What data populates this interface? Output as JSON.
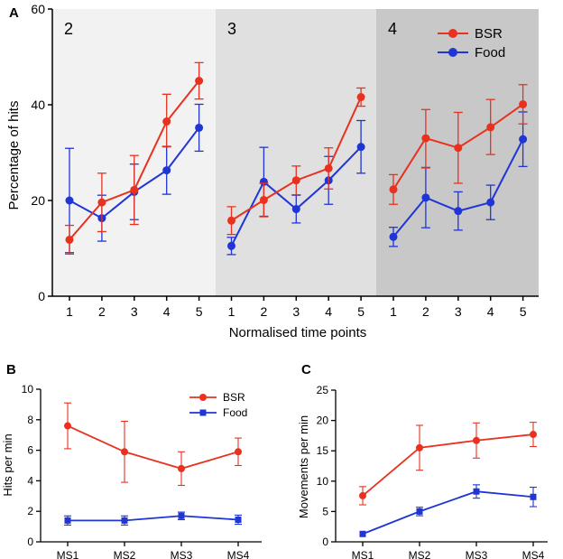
{
  "figure": {
    "panels": {
      "a": "A",
      "b": "B",
      "c": "C"
    }
  },
  "colors": {
    "bsr": "#e8321f",
    "food": "#1f35d6",
    "region1": "#f2f2f2",
    "region2": "#e0e0e0",
    "region3": "#c8c8c8"
  },
  "chart_data": [
    {
      "type": "line",
      "panel": "A",
      "title": "",
      "xlabel": "Normalised time points",
      "ylabel": "Percentage of hits",
      "ylim": [
        0,
        60
      ],
      "yticks": [
        0,
        20,
        40,
        60
      ],
      "categories": [
        "1",
        "2",
        "3",
        "4",
        "5",
        "1",
        "2",
        "3",
        "4",
        "5",
        "1",
        "2",
        "3",
        "4",
        "5"
      ],
      "regions": [
        {
          "label": "2",
          "from": 0,
          "to": 4
        },
        {
          "label": "3",
          "from": 5,
          "to": 9
        },
        {
          "label": "4",
          "from": 10,
          "to": 14
        }
      ],
      "legend": {
        "position": "top-right"
      },
      "series": [
        {
          "name": "BSR",
          "marker": "circle",
          "values": [
            11.8,
            19.6,
            22.2,
            36.5,
            45.0,
            15.8,
            20.1,
            24.2,
            26.7,
            41.6,
            22.3,
            33.0,
            31.0,
            35.3,
            40.1
          ],
          "err_low": [
            3.0,
            6.1,
            7.2,
            5.3,
            3.8,
            2.9,
            3.5,
            3.0,
            4.3,
            1.9,
            3.1,
            6.2,
            7.4,
            5.7,
            4.1
          ],
          "err_high": [
            3.0,
            6.1,
            7.2,
            5.7,
            3.8,
            2.9,
            3.5,
            3.0,
            4.3,
            1.9,
            3.1,
            6.0,
            7.4,
            5.8,
            4.1
          ],
          "segments": [
            [
              0,
              4
            ],
            [
              5,
              9
            ],
            [
              10,
              14
            ]
          ]
        },
        {
          "name": "Food",
          "marker": "circle",
          "values": [
            20.0,
            16.3,
            21.8,
            26.3,
            35.2,
            10.5,
            23.9,
            18.2,
            24.2,
            31.2,
            12.4,
            20.6,
            17.8,
            19.6,
            32.8
          ],
          "err_low": [
            10.9,
            4.8,
            5.8,
            5.0,
            4.9,
            1.8,
            7.2,
            2.9,
            5.0,
            5.5,
            2.0,
            6.3,
            4.0,
            3.6,
            5.7
          ],
          "err_high": [
            10.9,
            4.8,
            5.8,
            5.0,
            4.9,
            1.8,
            7.2,
            2.9,
            5.0,
            5.5,
            2.0,
            6.3,
            4.0,
            3.6,
            5.7
          ],
          "segments": [
            [
              0,
              4
            ],
            [
              5,
              9
            ],
            [
              10,
              14
            ]
          ]
        }
      ]
    },
    {
      "type": "line",
      "panel": "B",
      "title": "",
      "xlabel": "",
      "ylabel": "Hits per min",
      "ylim": [
        0,
        10
      ],
      "yticks": [
        0,
        2,
        4,
        6,
        8,
        10
      ],
      "categories": [
        "MS1",
        "MS2",
        "MS3",
        "MS4"
      ],
      "legend": {
        "position": "top-right"
      },
      "series": [
        {
          "name": "BSR",
          "marker": "circle",
          "values": [
            7.6,
            5.9,
            4.8,
            5.9
          ],
          "err": [
            1.5,
            2.0,
            1.1,
            0.9
          ]
        },
        {
          "name": "Food",
          "marker": "square",
          "values": [
            1.4,
            1.4,
            1.7,
            1.45
          ],
          "err": [
            0.3,
            0.3,
            0.25,
            0.3
          ]
        }
      ]
    },
    {
      "type": "line",
      "panel": "C",
      "title": "",
      "xlabel": "",
      "ylabel": "Movements per min",
      "ylim": [
        0,
        25
      ],
      "yticks": [
        0,
        5,
        10,
        15,
        20,
        25
      ],
      "categories": [
        "MS1",
        "MS2",
        "MS3",
        "MS4"
      ],
      "legend": null,
      "series": [
        {
          "name": "BSR",
          "marker": "circle",
          "values": [
            7.6,
            15.5,
            16.7,
            17.7
          ],
          "err": [
            1.5,
            3.7,
            2.9,
            2.0
          ]
        },
        {
          "name": "Food",
          "marker": "square",
          "values": [
            1.3,
            5.0,
            8.3,
            7.4
          ],
          "err": [
            0.0,
            0.7,
            1.1,
            1.6
          ]
        }
      ]
    }
  ]
}
